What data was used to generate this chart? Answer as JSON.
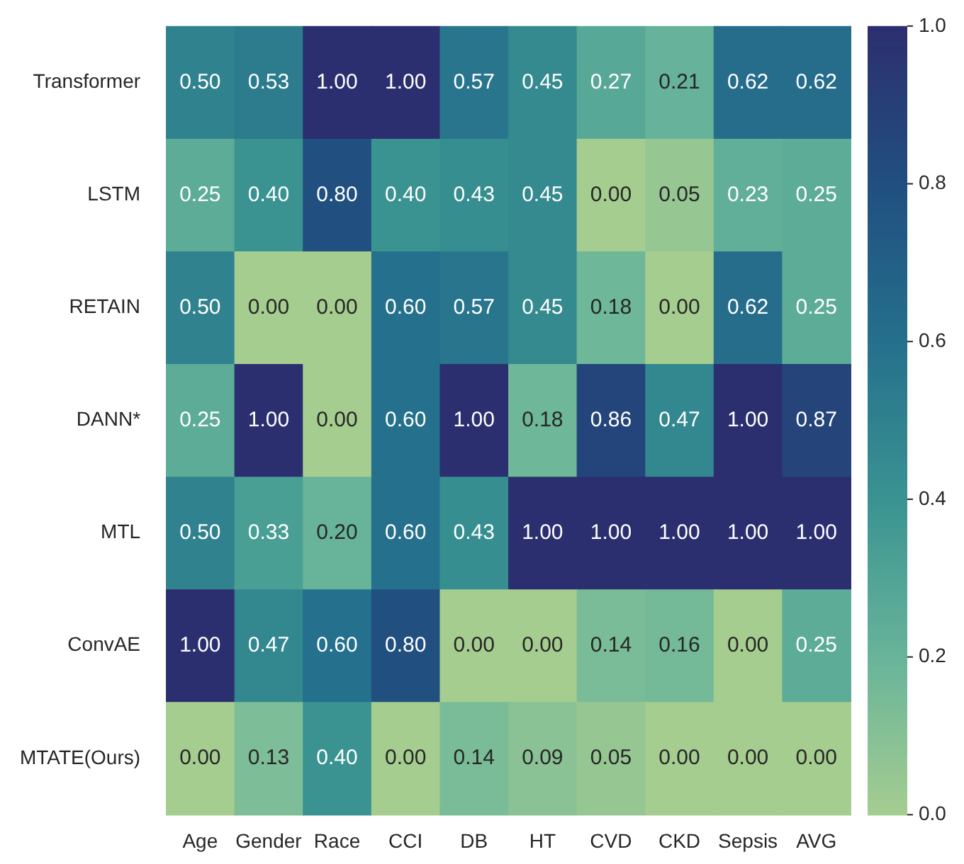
{
  "chart_data": {
    "type": "heatmap",
    "categories": [
      "Age",
      "Gender",
      "Race",
      "CCI",
      "DB",
      "HT",
      "CVD",
      "CKD",
      "Sepsis",
      "AVG"
    ],
    "y_categories": [
      "Transformer",
      "LSTM",
      "RETAIN",
      "DANN*",
      "MTL",
      "ConvAE",
      "MTATE(Ours)"
    ],
    "cells": [
      [
        0.5,
        0.53,
        1.0,
        1.0,
        0.57,
        0.45,
        0.27,
        0.21,
        0.62,
        0.62
      ],
      [
        0.25,
        0.4,
        0.8,
        0.4,
        0.43,
        0.45,
        0.0,
        0.05,
        0.23,
        0.25
      ],
      [
        0.5,
        0.0,
        0.0,
        0.6,
        0.57,
        0.45,
        0.18,
        0.0,
        0.62,
        0.25
      ],
      [
        0.25,
        1.0,
        0.0,
        0.6,
        1.0,
        0.18,
        0.86,
        0.47,
        1.0,
        0.87
      ],
      [
        0.5,
        0.33,
        0.2,
        0.6,
        0.43,
        1.0,
        1.0,
        1.0,
        1.0,
        1.0
      ],
      [
        1.0,
        0.47,
        0.6,
        0.8,
        0.0,
        0.0,
        0.14,
        0.16,
        0.0,
        0.25
      ],
      [
        0.0,
        0.13,
        0.4,
        0.0,
        0.14,
        0.09,
        0.05,
        0.0,
        0.0,
        0.0
      ]
    ],
    "cell_labels": [
      [
        "0.50",
        "0.53",
        "1.00",
        "1.00",
        "0.57",
        "0.45",
        "0.27",
        "0.21",
        "0.62",
        "0.62"
      ],
      [
        "0.25",
        "0.40",
        "0.80",
        "0.40",
        "0.43",
        "0.45",
        "0.00",
        "0.05",
        "0.23",
        "0.25"
      ],
      [
        "0.50",
        "0.00",
        "0.00",
        "0.60",
        "0.57",
        "0.45",
        "0.18",
        "0.00",
        "0.62",
        "0.25"
      ],
      [
        "0.25",
        "1.00",
        "0.00",
        "0.60",
        "1.00",
        "0.18",
        "0.86",
        "0.47",
        "1.00",
        "0.87"
      ],
      [
        "0.50",
        "0.33",
        "0.20",
        "0.60",
        "0.43",
        "1.00",
        "1.00",
        "1.00",
        "1.00",
        "1.00"
      ],
      [
        "1.00",
        "0.47",
        "0.60",
        "0.80",
        "0.00",
        "0.00",
        "0.14",
        "0.16",
        "0.00",
        "0.25"
      ],
      [
        "0.00",
        "0.13",
        "0.40",
        "0.00",
        "0.14",
        "0.09",
        "0.05",
        "0.00",
        "0.00",
        "0.00"
      ]
    ],
    "clim": [
      0,
      1
    ],
    "cticks": [
      {
        "value": 0,
        "label": "0.0"
      },
      {
        "value": 0.2,
        "label": "0.2"
      },
      {
        "value": 0.4,
        "label": "0.4"
      },
      {
        "value": 0.6,
        "label": "0.6"
      },
      {
        "value": 0.8,
        "label": "0.8"
      },
      {
        "value": 1,
        "label": "1.0"
      }
    ]
  }
}
